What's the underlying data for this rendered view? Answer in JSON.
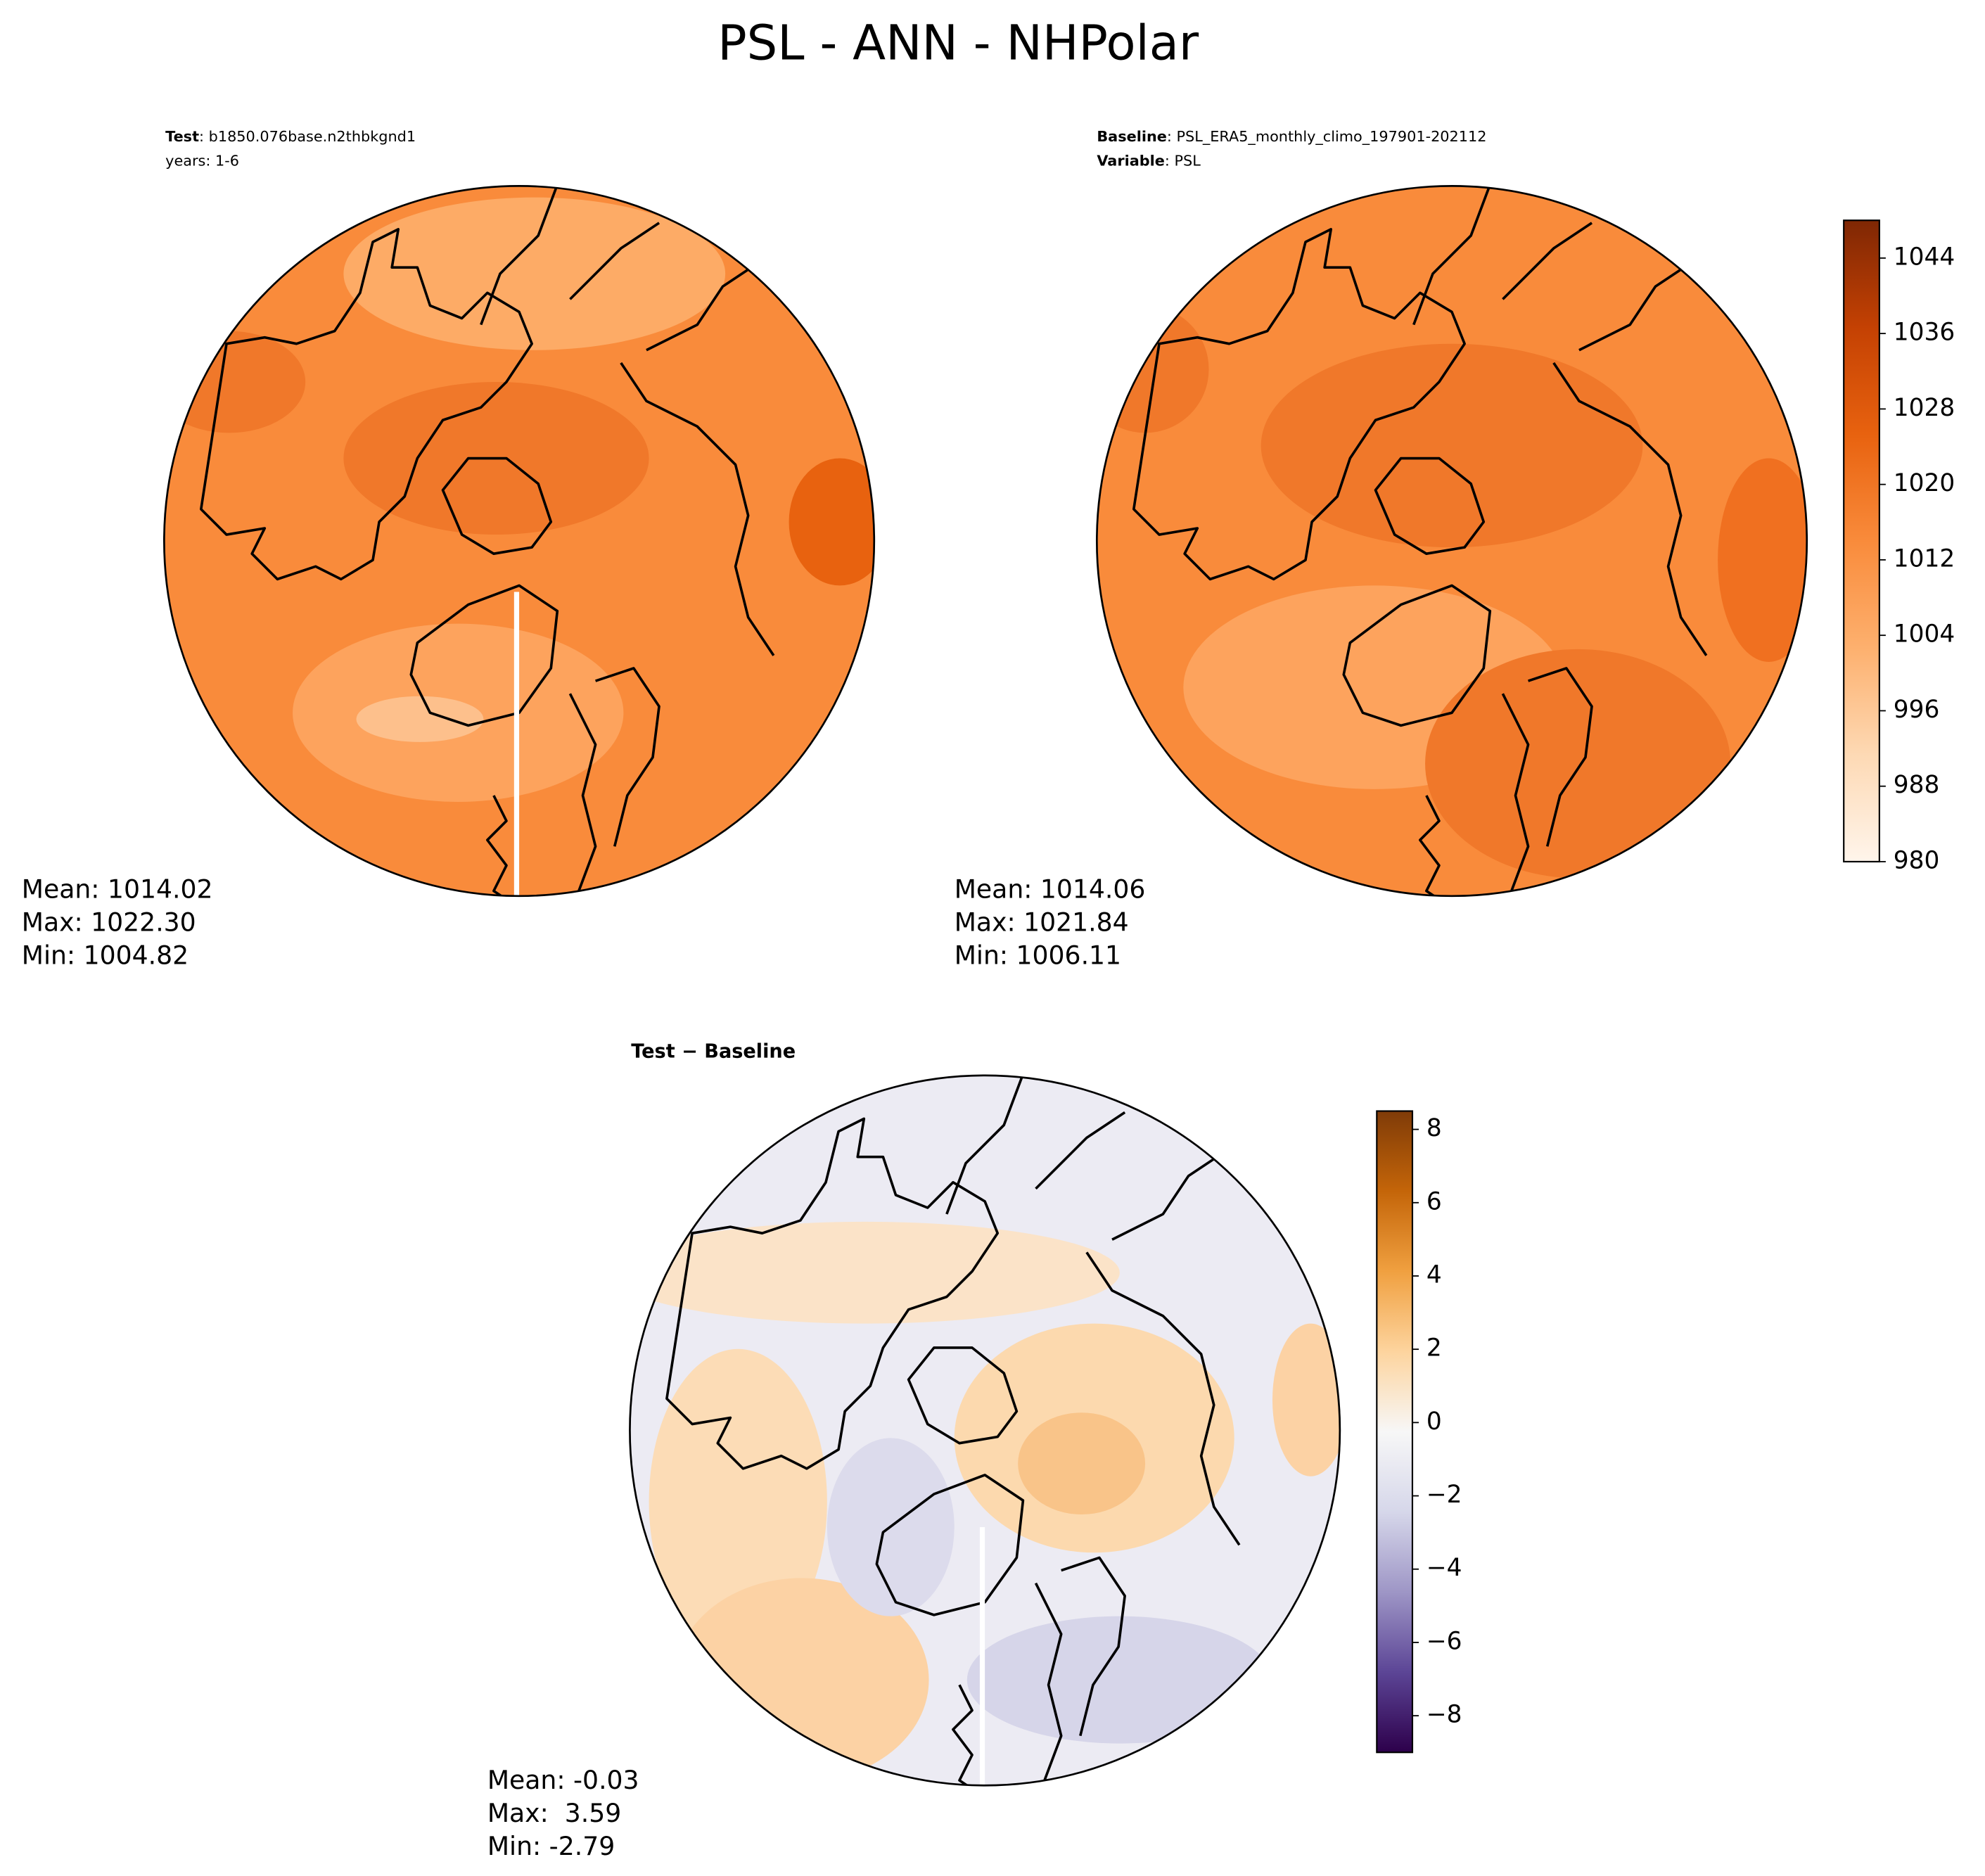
{
  "title": "PSL - ANN - NHPolar",
  "panels": [
    {
      "header": [
        {
          "key": "Test",
          "text": ": b1850.076base.n2thbkgnd1"
        },
        {
          "text": "years: 1-6"
        }
      ],
      "stats": [
        "Mean: 1014.02",
        "Max: 1022.30",
        "Min: 1004.82"
      ]
    },
    {
      "header": [
        {
          "key": "Baseline",
          "text": ": PSL_ERA5_monthly_climo_197901-202112"
        },
        {
          "key": "Variable",
          "text": ": PSL"
        }
      ],
      "stats": [
        "Mean: 1014.06",
        "Max: 1021.84",
        "Min: 1006.11"
      ]
    },
    {
      "header": [
        {
          "key": "Test − Baseline"
        }
      ],
      "stats": [
        "Mean: -0.03",
        "Max:  3.59",
        "Min: -2.79"
      ]
    }
  ],
  "colorbars": [
    {
      "lim": [
        980,
        1048
      ],
      "ticks": [
        980,
        988,
        996,
        1004,
        1012,
        1020,
        1028,
        1036,
        1044
      ],
      "colors": [
        "#fff5eb",
        "#fdd9b4",
        "#fdb06e",
        "#f98b3b",
        "#e8620f",
        "#c44103",
        "#7f2704"
      ]
    },
    {
      "lim": [
        -9,
        8.5
      ],
      "ticks": [
        {
          "value": -8,
          "label": "−8"
        },
        {
          "value": -6,
          "label": "−6"
        },
        {
          "value": -4,
          "label": "−4"
        },
        {
          "value": -2,
          "label": "−2"
        },
        0,
        2,
        4,
        6,
        8
      ],
      "colors": [
        "#2d004b",
        "#5c4596",
        "#9e96c6",
        "#d6d7ea",
        "#f7f7f7",
        "#fdd49e",
        "#f0a040",
        "#c46509",
        "#7f3b08"
      ]
    }
  ]
}
